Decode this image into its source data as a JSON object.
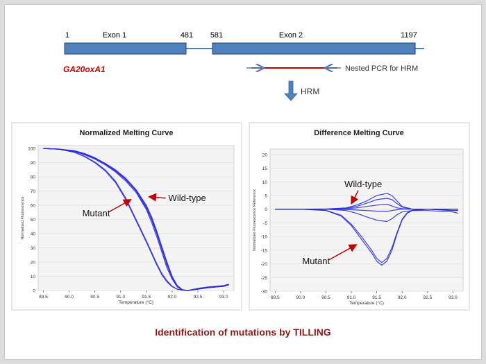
{
  "gene_diagram": {
    "gene_name": "GA20oxA1",
    "exon1": {
      "label": "Exon 1",
      "start": "1",
      "end": "481"
    },
    "exon2": {
      "label": "Exon 2",
      "start": "581",
      "end": "1197"
    },
    "primer_label": "Nested PCR for HRM",
    "step_label": "HRM"
  },
  "caption": "Identification of mutations by TILLING",
  "colors": {
    "exon_fill": "#4f81bd",
    "exon_stroke": "#1f3f6f",
    "gene_name": "#c00000",
    "caption": "#8b1a1a",
    "amplicon": "#c00000",
    "primer_arrow": "#4f81bd",
    "curve": "#2b2bd8",
    "annotation_arrow": "#c00000"
  },
  "chart_data": [
    {
      "type": "line",
      "title": "Normalized Melting Curve",
      "xlabel": "Temperature (°C)",
      "ylabel": "Normalized Fluorescence",
      "xlim": [
        89.4,
        93.2
      ],
      "ylim": [
        0,
        102
      ],
      "xticks": [
        "89.5",
        "90.0",
        "90.5",
        "91.0",
        "91.5",
        "92.0",
        "92.5",
        "93.0"
      ],
      "yticks": [
        "100",
        "90",
        "80",
        "70",
        "60",
        "50",
        "40",
        "30",
        "20",
        "10",
        "0"
      ],
      "annotations": [
        {
          "text": "Wild-type",
          "x": 91.55,
          "y": 66
        },
        {
          "text": "Mutant",
          "x": 91.2,
          "y": 64
        }
      ],
      "series": [
        {
          "name": "Wild-type",
          "x": [
            89.5,
            89.8,
            90.1,
            90.3,
            90.5,
            90.7,
            90.9,
            91.1,
            91.3,
            91.5,
            91.6,
            91.7,
            91.8,
            91.9,
            92.0,
            92.1,
            92.2,
            92.3,
            92.5,
            92.7,
            93.0,
            93.1
          ],
          "y": [
            100,
            99.5,
            98,
            96,
            93,
            89,
            84,
            78,
            70,
            58,
            50,
            40,
            29,
            18,
            9,
            3,
            0.5,
            0,
            1,
            2,
            3,
            4
          ]
        },
        {
          "name": "Wild-type",
          "x": [
            89.5,
            89.8,
            90.1,
            90.3,
            90.5,
            90.7,
            90.9,
            91.1,
            91.3,
            91.5,
            91.6,
            91.7,
            91.8,
            91.9,
            92.0,
            92.1,
            92.2,
            92.3,
            92.5,
            92.7,
            93.0,
            93.1
          ],
          "y": [
            100,
            99.5,
            98.5,
            96.5,
            93.5,
            89.5,
            85,
            79,
            71,
            60,
            52,
            42,
            31,
            20,
            10,
            3.5,
            0.6,
            0,
            1.5,
            2.5,
            3.5,
            4.5
          ]
        },
        {
          "name": "Wild-type",
          "x": [
            89.5,
            89.8,
            90.1,
            90.3,
            90.5,
            90.7,
            90.9,
            91.1,
            91.3,
            91.5,
            91.6,
            91.7,
            91.8,
            91.9,
            92.0,
            92.1,
            92.2,
            92.3,
            92.5,
            92.7,
            93.0,
            93.1
          ],
          "y": [
            100,
            99.5,
            98,
            95.5,
            92.5,
            88.5,
            83.5,
            77,
            69,
            57,
            48,
            38,
            27,
            16,
            8,
            2.5,
            0.4,
            0,
            1,
            2,
            3,
            4
          ]
        },
        {
          "name": "Wild-type",
          "x": [
            89.5,
            89.8,
            90.1,
            90.3,
            90.5,
            90.7,
            90.9,
            91.1,
            91.3,
            91.5,
            91.6,
            91.7,
            91.8,
            91.9,
            92.0,
            92.1,
            92.2,
            92.3,
            92.5,
            92.7,
            93.0,
            93.1
          ],
          "y": [
            100,
            99.5,
            98.2,
            96.2,
            93.2,
            89.2,
            84.5,
            78.5,
            70.5,
            59,
            50.5,
            41,
            30,
            19,
            9.5,
            3,
            0.5,
            0,
            1.2,
            2.2,
            3.2,
            4.2
          ]
        },
        {
          "name": "Mutant",
          "x": [
            89.5,
            89.8,
            90.1,
            90.3,
            90.5,
            90.7,
            90.9,
            91.1,
            91.3,
            91.5,
            91.6,
            91.7,
            91.8,
            91.9,
            92.0,
            92.1,
            92.2,
            92.3,
            92.5,
            92.7,
            93.0,
            93.1
          ],
          "y": [
            100,
            99.5,
            97.5,
            94.5,
            90.5,
            85,
            77,
            65,
            50,
            35,
            27,
            19,
            12,
            7,
            3,
            1,
            0.3,
            0,
            1,
            2,
            3,
            4
          ]
        },
        {
          "name": "Mutant",
          "x": [
            89.5,
            89.8,
            90.1,
            90.3,
            90.5,
            90.7,
            90.9,
            91.1,
            91.3,
            91.5,
            91.6,
            91.7,
            91.8,
            91.9,
            92.0,
            92.1,
            92.2,
            92.3,
            92.5,
            92.7,
            93.0,
            93.1
          ],
          "y": [
            100,
            99.5,
            97.3,
            94.2,
            90,
            84.2,
            76,
            64,
            49,
            34,
            26,
            18,
            11,
            6,
            2.7,
            0.9,
            0.3,
            0,
            1,
            2,
            3,
            4
          ]
        }
      ]
    },
    {
      "type": "line",
      "title": "Difference Melting Curve",
      "xlabel": "Temperature (°C)",
      "ylabel": "Normalized Fluorescence Reference",
      "xlim": [
        89.4,
        93.2
      ],
      "ylim": [
        -30,
        22
      ],
      "xticks": [
        "89.5",
        "90.0",
        "90.5",
        "91.0",
        "91.5",
        "92.0",
        "92.5",
        "93.0"
      ],
      "yticks": [
        "20",
        "15",
        "10",
        "5",
        "0",
        "-5",
        "-10",
        "-15",
        "-20",
        "-25",
        "-30"
      ],
      "annotations": [
        {
          "text": "Wild-type",
          "x": 91.0,
          "y": 2
        },
        {
          "text": "Mutant",
          "x": 91.1,
          "y": -13
        }
      ],
      "series": [
        {
          "name": "Wild-type",
          "x": [
            89.5,
            90.0,
            90.5,
            90.9,
            91.1,
            91.3,
            91.5,
            91.7,
            91.8,
            91.9,
            92.0,
            92.2,
            92.5,
            93.0,
            93.1
          ],
          "y": [
            0,
            0,
            0.1,
            0.5,
            1.5,
            3,
            5,
            5.8,
            5,
            3,
            1,
            0,
            0,
            0,
            0
          ]
        },
        {
          "name": "Wild-type",
          "x": [
            89.5,
            90.0,
            90.5,
            90.9,
            91.1,
            91.3,
            91.5,
            91.7,
            91.8,
            91.9,
            92.0,
            92.2,
            92.5,
            93.0,
            93.1
          ],
          "y": [
            0,
            0,
            0,
            0.3,
            1,
            2.2,
            3.5,
            4,
            3.5,
            2,
            0.8,
            0,
            0,
            0,
            0
          ]
        },
        {
          "name": "Wild-type",
          "x": [
            89.5,
            90.0,
            90.5,
            90.9,
            91.1,
            91.3,
            91.5,
            91.7,
            91.8,
            91.9,
            92.0,
            92.2,
            92.5,
            93.0,
            93.1
          ],
          "y": [
            0,
            0,
            0,
            0.1,
            0.5,
            1,
            1.5,
            1.8,
            1.2,
            0.5,
            0.2,
            0,
            0,
            0,
            0
          ]
        },
        {
          "name": "Wild-type",
          "x": [
            89.5,
            90.0,
            90.5,
            90.9,
            91.1,
            91.3,
            91.5,
            91.7,
            91.8,
            91.9,
            92.0,
            92.2,
            92.5,
            93.0,
            93.1
          ],
          "y": [
            0,
            0,
            0,
            -0.1,
            -0.3,
            -0.5,
            -0.7,
            -0.8,
            -0.5,
            -0.2,
            0,
            0,
            0,
            0,
            0
          ]
        },
        {
          "name": "Wild-type",
          "x": [
            89.5,
            90.0,
            90.5,
            90.9,
            91.1,
            91.3,
            91.5,
            91.7,
            91.8,
            91.9,
            92.0,
            92.2,
            92.5,
            93.0,
            93.1
          ],
          "y": [
            0,
            0,
            0,
            -0.5,
            -1.5,
            -2.8,
            -4,
            -4.5,
            -3.5,
            -2,
            -1,
            -0.5,
            -0.5,
            -1,
            -1.5
          ]
        },
        {
          "name": "Mutant",
          "x": [
            89.5,
            90.0,
            90.5,
            90.8,
            91.0,
            91.2,
            91.4,
            91.5,
            91.6,
            91.7,
            91.8,
            91.9,
            92.0,
            92.1,
            92.2,
            92.5,
            93.0,
            93.1
          ],
          "y": [
            0,
            0,
            -0.5,
            -2.5,
            -6,
            -11,
            -16,
            -19,
            -20.5,
            -19,
            -15,
            -9,
            -4,
            -1.5,
            -0.5,
            0,
            -0.5,
            -0.5
          ]
        },
        {
          "name": "Mutant",
          "x": [
            89.5,
            90.0,
            90.5,
            90.8,
            91.0,
            91.2,
            91.4,
            91.5,
            91.6,
            91.7,
            91.8,
            91.9,
            92.0,
            92.1,
            92.2,
            92.5,
            93.0,
            93.1
          ],
          "y": [
            0,
            0,
            -0.4,
            -2.2,
            -5.5,
            -10,
            -15,
            -18,
            -19.5,
            -18,
            -14,
            -8.5,
            -3.7,
            -1.3,
            -0.4,
            0,
            -0.5,
            -0.5
          ]
        }
      ]
    }
  ]
}
